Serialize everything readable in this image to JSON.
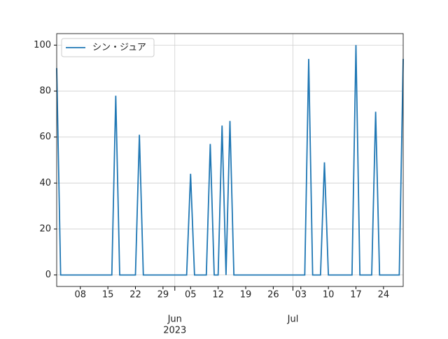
{
  "chart_data": {
    "type": "line",
    "x": [
      "2023-05-02",
      "2023-05-03",
      "2023-05-04",
      "2023-05-05",
      "2023-05-06",
      "2023-05-07",
      "2023-05-08",
      "2023-05-09",
      "2023-05-10",
      "2023-05-11",
      "2023-05-12",
      "2023-05-13",
      "2023-05-14",
      "2023-05-15",
      "2023-05-16",
      "2023-05-17",
      "2023-05-18",
      "2023-05-19",
      "2023-05-20",
      "2023-05-21",
      "2023-05-22",
      "2023-05-23",
      "2023-05-24",
      "2023-05-25",
      "2023-05-26",
      "2023-05-27",
      "2023-05-28",
      "2023-05-29",
      "2023-05-30",
      "2023-05-31",
      "2023-06-01",
      "2023-06-02",
      "2023-06-03",
      "2023-06-04",
      "2023-06-05",
      "2023-06-06",
      "2023-06-07",
      "2023-06-08",
      "2023-06-09",
      "2023-06-10",
      "2023-06-11",
      "2023-06-12",
      "2023-06-13",
      "2023-06-14",
      "2023-06-15",
      "2023-06-16",
      "2023-06-17",
      "2023-06-18",
      "2023-06-19",
      "2023-06-20",
      "2023-06-21",
      "2023-06-22",
      "2023-06-23",
      "2023-06-24",
      "2023-06-25",
      "2023-06-26",
      "2023-06-27",
      "2023-06-28",
      "2023-06-29",
      "2023-06-30",
      "2023-07-01",
      "2023-07-02",
      "2023-07-03",
      "2023-07-04",
      "2023-07-05",
      "2023-07-06",
      "2023-07-07",
      "2023-07-08",
      "2023-07-09",
      "2023-07-10",
      "2023-07-11",
      "2023-07-12",
      "2023-07-13",
      "2023-07-14",
      "2023-07-15",
      "2023-07-16",
      "2023-07-17",
      "2023-07-18",
      "2023-07-19",
      "2023-07-20",
      "2023-07-21",
      "2023-07-22",
      "2023-07-23",
      "2023-07-24",
      "2023-07-25",
      "2023-07-26",
      "2023-07-27",
      "2023-07-28",
      "2023-07-29"
    ],
    "series": [
      {
        "name": "シン・ジュア",
        "color": "#1f77b4",
        "values": [
          90,
          0,
          0,
          0,
          0,
          0,
          0,
          0,
          0,
          0,
          0,
          0,
          0,
          0,
          0,
          78,
          0,
          0,
          0,
          0,
          0,
          61,
          0,
          0,
          0,
          0,
          0,
          0,
          0,
          0,
          0,
          0,
          0,
          0,
          44,
          0,
          0,
          0,
          0,
          57,
          0,
          0,
          65,
          0,
          67,
          0,
          0,
          0,
          0,
          0,
          0,
          0,
          0,
          0,
          0,
          0,
          0,
          0,
          0,
          0,
          0,
          0,
          0,
          0,
          94,
          0,
          0,
          0,
          49,
          0,
          0,
          0,
          0,
          0,
          0,
          0,
          100,
          0,
          0,
          0,
          0,
          71,
          0,
          0,
          0,
          0,
          0,
          0,
          94
        ]
      }
    ],
    "xlim": [
      "2023-05-02",
      "2023-07-29"
    ],
    "xticks": [
      {
        "value": "2023-05-08",
        "label": "08"
      },
      {
        "value": "2023-05-15",
        "label": "15"
      },
      {
        "value": "2023-05-22",
        "label": "22"
      },
      {
        "value": "2023-05-29",
        "label": "29"
      },
      {
        "value": "2023-06-01",
        "label": "Jun",
        "sublabel": "2023",
        "major": true
      },
      {
        "value": "2023-06-05",
        "label": "05"
      },
      {
        "value": "2023-06-12",
        "label": "12"
      },
      {
        "value": "2023-06-19",
        "label": "19"
      },
      {
        "value": "2023-06-26",
        "label": "26"
      },
      {
        "value": "2023-07-01",
        "label": "Jul",
        "major": true
      },
      {
        "value": "2023-07-03",
        "label": "03"
      },
      {
        "value": "2023-07-10",
        "label": "10"
      },
      {
        "value": "2023-07-17",
        "label": "17"
      },
      {
        "value": "2023-07-24",
        "label": "24"
      }
    ],
    "ylim": [
      -5,
      105
    ],
    "yticks": [
      0,
      20,
      40,
      60,
      80,
      100
    ],
    "grid": true,
    "legend": "upper left"
  }
}
